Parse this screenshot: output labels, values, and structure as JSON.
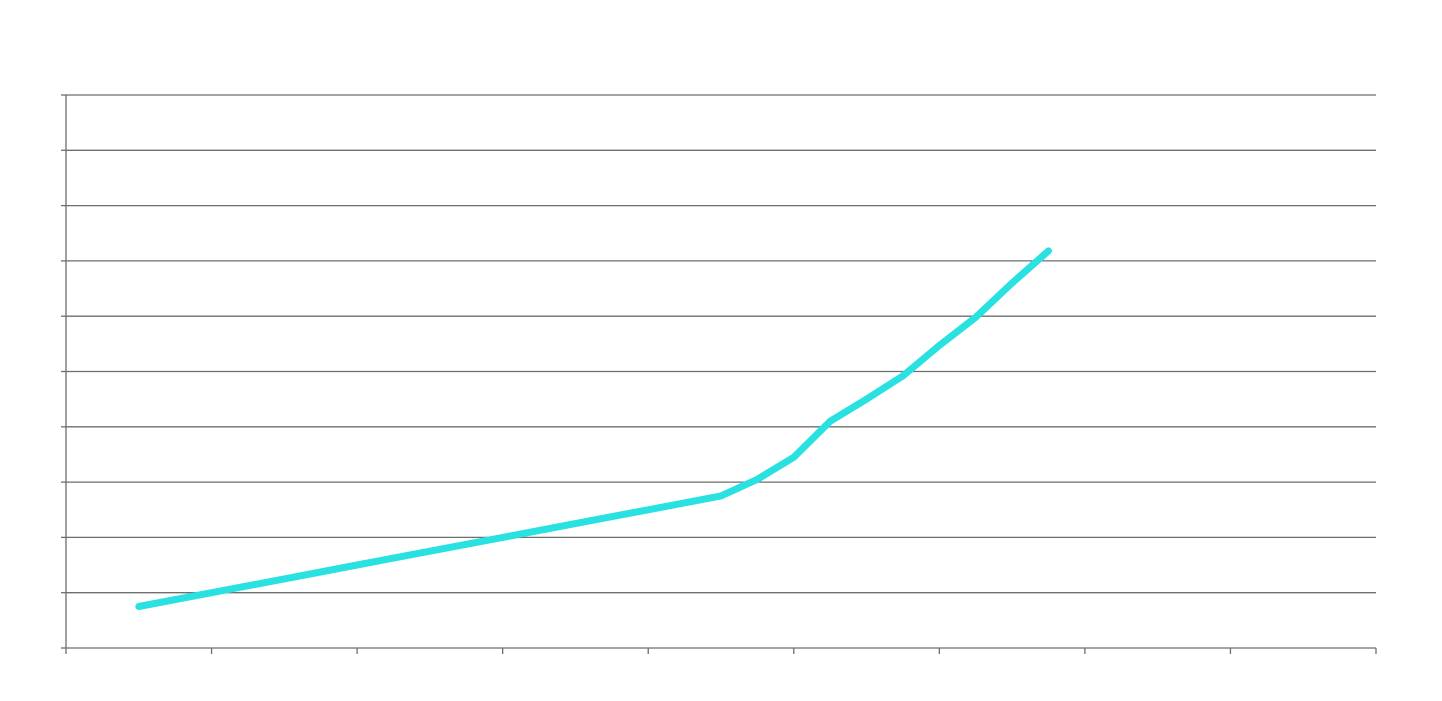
{
  "chart_data": {
    "type": "line",
    "x": [
      1,
      2,
      3,
      4,
      5,
      6,
      7,
      8,
      9,
      9.5,
      10,
      10.5,
      11,
      11.5,
      12,
      12.5,
      13,
      13.5
    ],
    "series": [
      {
        "values": [
          0.25,
          0.5,
          0.75,
          1.0,
          1.25,
          1.5,
          1.75,
          2.0,
          2.25,
          2.55,
          2.95,
          3.6,
          4.0,
          4.42,
          4.97,
          5.48,
          6.1,
          6.68
        ],
        "color": "#29e1e1"
      }
    ],
    "title": "",
    "xlabel": "",
    "ylabel": "",
    "xlim": [
      0,
      18
    ],
    "ylim": [
      -0.5,
      9.5
    ],
    "grid": true,
    "x_tick_count": 10,
    "y_tick_count": 11
  }
}
